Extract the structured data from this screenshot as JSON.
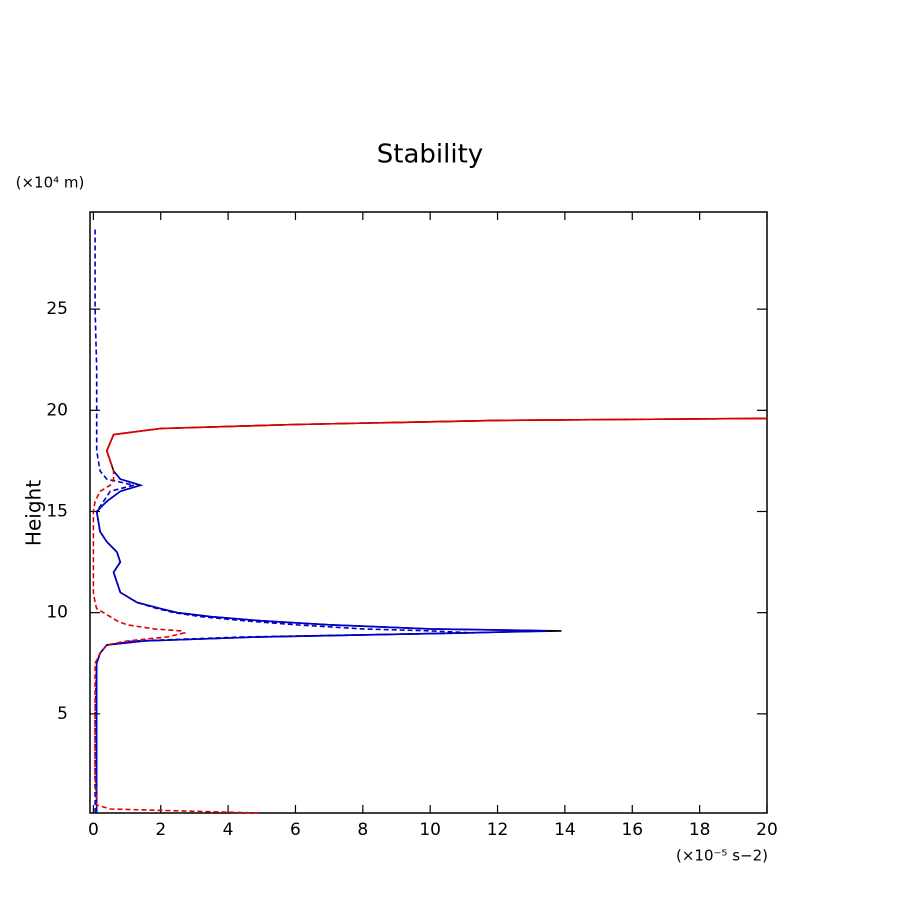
{
  "chart_data": {
    "type": "line",
    "title": "Stability",
    "y_label": "Height",
    "y_unit": "(×10⁴ m)",
    "x_unit": "(×10⁻⁵ s−2)",
    "xlim": [
      -0.1,
      20
    ],
    "xticks": [
      0,
      2,
      4,
      6,
      8,
      10,
      12,
      14,
      16,
      18,
      20
    ],
    "ylim": [
      0.1,
      29.8
    ],
    "yticks": [
      5,
      10,
      15,
      20,
      25
    ],
    "heights": [
      0.1,
      0.3,
      0.5,
      2,
      5,
      7.5,
      8,
      8.4,
      8.6,
      8.8,
      9.0,
      9.1,
      9.2,
      9.4,
      9.6,
      9.8,
      10,
      10.2,
      10.5,
      11,
      12,
      12.5,
      13,
      13.5,
      14,
      15,
      15.5,
      16,
      16.3,
      16.6,
      17,
      17.5,
      18,
      18.8,
      19.1,
      19.3,
      19.5,
      19.6,
      22,
      25,
      29
    ],
    "series": [
      {
        "color": "#0000cc",
        "dash": true,
        "values": [
          0.05,
          0.05,
          0.05,
          0.05,
          0.05,
          0.1,
          0.2,
          0.4,
          1.2,
          4.5,
          11.3,
          10,
          8,
          6,
          4.5,
          3.2,
          2.4,
          1.9,
          1.3,
          0.8,
          0.6,
          0.8,
          0.7,
          0.4,
          0.2,
          0.1,
          0.3,
          0.5,
          1.2,
          0.4,
          0.2,
          0.15,
          0.1,
          0.1,
          0.1,
          0.1,
          0.1,
          0.1,
          0.1,
          0.05,
          0.05
        ]
      },
      {
        "color": "#000000",
        "dash": false,
        "values": [
          0.1,
          0.1,
          0.1,
          0.1,
          0.1,
          0.1,
          0.2,
          0.4,
          1.5,
          5,
          11,
          13.9,
          10,
          7,
          5,
          3.5,
          2.5,
          2,
          1.3,
          0.8,
          0.6,
          0.8,
          0.7,
          0.4,
          0.2,
          0.1,
          0.4,
          0.8,
          1.4,
          0.8,
          0.6,
          0.5,
          0.4,
          0.6,
          2,
          6,
          12,
          20,
          null,
          null,
          null
        ]
      },
      {
        "color": "#0000cc",
        "dash": false,
        "values": [
          0.1,
          0.1,
          0.1,
          0.1,
          0.1,
          0.1,
          0.2,
          0.4,
          1.5,
          5,
          11,
          13.5,
          10,
          7,
          5,
          3.5,
          2.5,
          2,
          1.3,
          0.8,
          0.6,
          0.8,
          0.7,
          0.4,
          0.2,
          0.1,
          0.4,
          0.8,
          1.4,
          0.8,
          0.6,
          null,
          null,
          null,
          null,
          null,
          null,
          null,
          null,
          null,
          null
        ]
      },
      {
        "color": "#dd0000",
        "dash": true,
        "values": [
          4.9,
          0.5,
          0.1,
          0.05,
          0.05,
          0.05,
          0.2,
          0.4,
          1.0,
          2.2,
          2.7,
          2.6,
          1.8,
          1.0,
          0.7,
          0.5,
          0.3,
          0.1,
          0.05,
          0.0,
          0.0,
          0.0,
          0.0,
          0.0,
          0.0,
          0.0,
          0.05,
          0.2,
          0.5,
          0.6,
          0.6,
          0.5,
          0.4,
          0.6,
          2,
          6,
          12,
          20,
          null,
          null,
          null
        ]
      },
      {
        "color": "#dd0000",
        "dash": false,
        "values": [
          null,
          null,
          null,
          null,
          null,
          null,
          null,
          null,
          null,
          null,
          null,
          null,
          null,
          null,
          null,
          null,
          null,
          null,
          null,
          null,
          null,
          null,
          null,
          null,
          null,
          null,
          null,
          null,
          null,
          null,
          null,
          0.5,
          0.4,
          0.6,
          2,
          6,
          12,
          20,
          null,
          null,
          null
        ]
      }
    ]
  }
}
